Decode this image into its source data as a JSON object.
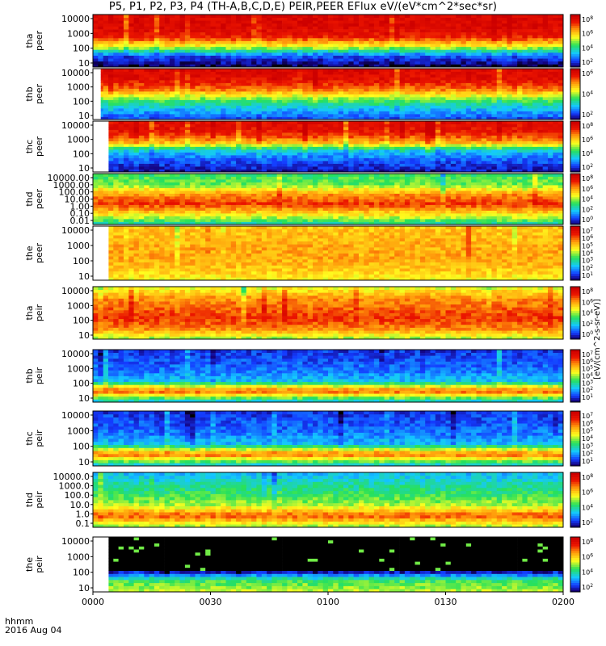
{
  "title": "P5, P1, P2, P3, P4 (TH-A,B,C,D,E) PEIR,PEER EFlux eV/(eV*cm^2*sec*sr)",
  "corner": {
    "label1": "hhmm",
    "label2": "2016 Aug 04"
  },
  "colors": {
    "deep_blue": "#1010a0",
    "blue": "#1060ff",
    "cyan": "#20d0ff",
    "green": "#30e060",
    "yellow": "#ffff20",
    "orange": "#ff9a10",
    "red": "#e00000",
    "black": "#000000"
  },
  "chart_data": {
    "type": "heatmap",
    "title": "P5, P1, P2, P3, P4 (TH-A,B,C,D,E) PEIR,PEER EFlux eV/(eV*cm^2*sec*sr)",
    "x_ticks": [
      "0000",
      "0030",
      "0100",
      "0130",
      "0200"
    ],
    "x_range": [
      "0000",
      "0200"
    ],
    "colorbar_label": "[eV/(cm^2-s-sr-eV)]",
    "panels": [
      {
        "probe": "tha",
        "species": "peer",
        "ylabel": [
          "tha",
          "peer"
        ],
        "yticks": [
          "10000",
          "1000",
          "100",
          "10"
        ],
        "cbar_ticks": [
          "10^8",
          "10^6",
          "10^4",
          "10^2"
        ],
        "data_start": "0000",
        "profile": [
          0.05,
          0.18,
          0.62,
          0.9,
          0.95,
          0.95
        ]
      },
      {
        "probe": "thb",
        "species": "peer",
        "ylabel": [
          "thb",
          "peer"
        ],
        "yticks": [
          "10000",
          "1000",
          "100",
          "10"
        ],
        "cbar_ticks": [
          "10^6",
          "10^4",
          "10^2"
        ],
        "data_start": "0002",
        "profile": [
          0.18,
          0.3,
          0.5,
          0.78,
          0.92,
          0.94
        ]
      },
      {
        "probe": "thc",
        "species": "peer",
        "ylabel": [
          "thc",
          "peer"
        ],
        "yticks": [
          "10000",
          "1000",
          "100",
          "10"
        ],
        "cbar_ticks": [
          "10^8",
          "10^6",
          "10^4",
          "10^2"
        ],
        "data_start": "0004",
        "profile": [
          0.1,
          0.18,
          0.3,
          0.72,
          0.9,
          0.92
        ]
      },
      {
        "probe": "thd",
        "species": "peer",
        "ylabel": [
          "thd",
          "peer"
        ],
        "yticks": [
          "10000.00",
          "1000.00",
          "100.00",
          "10.00",
          "1.00",
          "0.10",
          "0.01"
        ],
        "cbar_ticks": [
          "10^8",
          "10^6",
          "10^4",
          "10^2",
          "10^0"
        ],
        "data_start": "0000",
        "profile": [
          0.4,
          0.65,
          0.85,
          0.75,
          0.5,
          0.45
        ]
      },
      {
        "probe": "the",
        "species": "peer",
        "ylabel": [
          "the",
          "peer"
        ],
        "yticks": [
          "10000",
          "1000",
          "100",
          "10"
        ],
        "cbar_ticks": [
          "10^7",
          "10^6",
          "10^5",
          "10^4",
          "10^3",
          "10^2",
          "10^1"
        ],
        "data_start": "0004",
        "profile": [
          0.62,
          0.68,
          0.72,
          0.72,
          0.7,
          0.68
        ]
      },
      {
        "probe": "tha",
        "species": "peir",
        "ylabel": [
          "tha",
          "peir"
        ],
        "yticks": [
          "10000",
          "1000",
          "100",
          "10"
        ],
        "cbar_ticks": [
          "10^8",
          "10^6",
          "10^4",
          "10^2",
          "10^0"
        ],
        "data_start": "0000",
        "profile": [
          0.55,
          0.78,
          0.85,
          0.8,
          0.75,
          0.6
        ]
      },
      {
        "probe": "thb",
        "species": "peir",
        "ylabel": [
          "thb",
          "peir"
        ],
        "yticks": [
          "10000",
          "1000",
          "100",
          "10"
        ],
        "cbar_ticks": [
          "10^7",
          "10^6",
          "10^5",
          "10^4",
          "10^3",
          "10^2",
          "10^1"
        ],
        "data_start": "0000",
        "profile": [
          0.35,
          0.82,
          0.3,
          0.22,
          0.18,
          0.15
        ]
      },
      {
        "probe": "thc",
        "species": "peir",
        "ylabel": [
          "thc",
          "peir"
        ],
        "yticks": [
          "10000",
          "1000",
          "100",
          "10"
        ],
        "cbar_ticks": [
          "10^7",
          "10^6",
          "10^5",
          "10^4",
          "10^3",
          "10^2",
          "10^1"
        ],
        "data_start": "0000",
        "profile": [
          0.35,
          0.8,
          0.3,
          0.22,
          0.18,
          0.15
        ]
      },
      {
        "probe": "thd",
        "species": "peir",
        "ylabel": [
          "thd",
          "peir"
        ],
        "yticks": [
          "10000.0",
          "1000.0",
          "100.0",
          "10.0",
          "1.0",
          "0.1"
        ],
        "cbar_ticks": [
          "10^8",
          "10^6",
          "10^4",
          "10^2"
        ],
        "data_start": "0000",
        "profile": [
          0.55,
          0.82,
          0.55,
          0.45,
          0.38,
          0.3
        ]
      },
      {
        "probe": "the",
        "species": "peir",
        "ylabel": [
          "the",
          "peir"
        ],
        "yticks": [
          "10000",
          "1000",
          "100",
          "10"
        ],
        "cbar_ticks": [
          "10^8",
          "10^6",
          "10^4",
          "10^2"
        ],
        "data_start": "0004",
        "profile": [
          0.55,
          0.45,
          0.0,
          0.0,
          0.0,
          0.0
        ]
      }
    ]
  }
}
